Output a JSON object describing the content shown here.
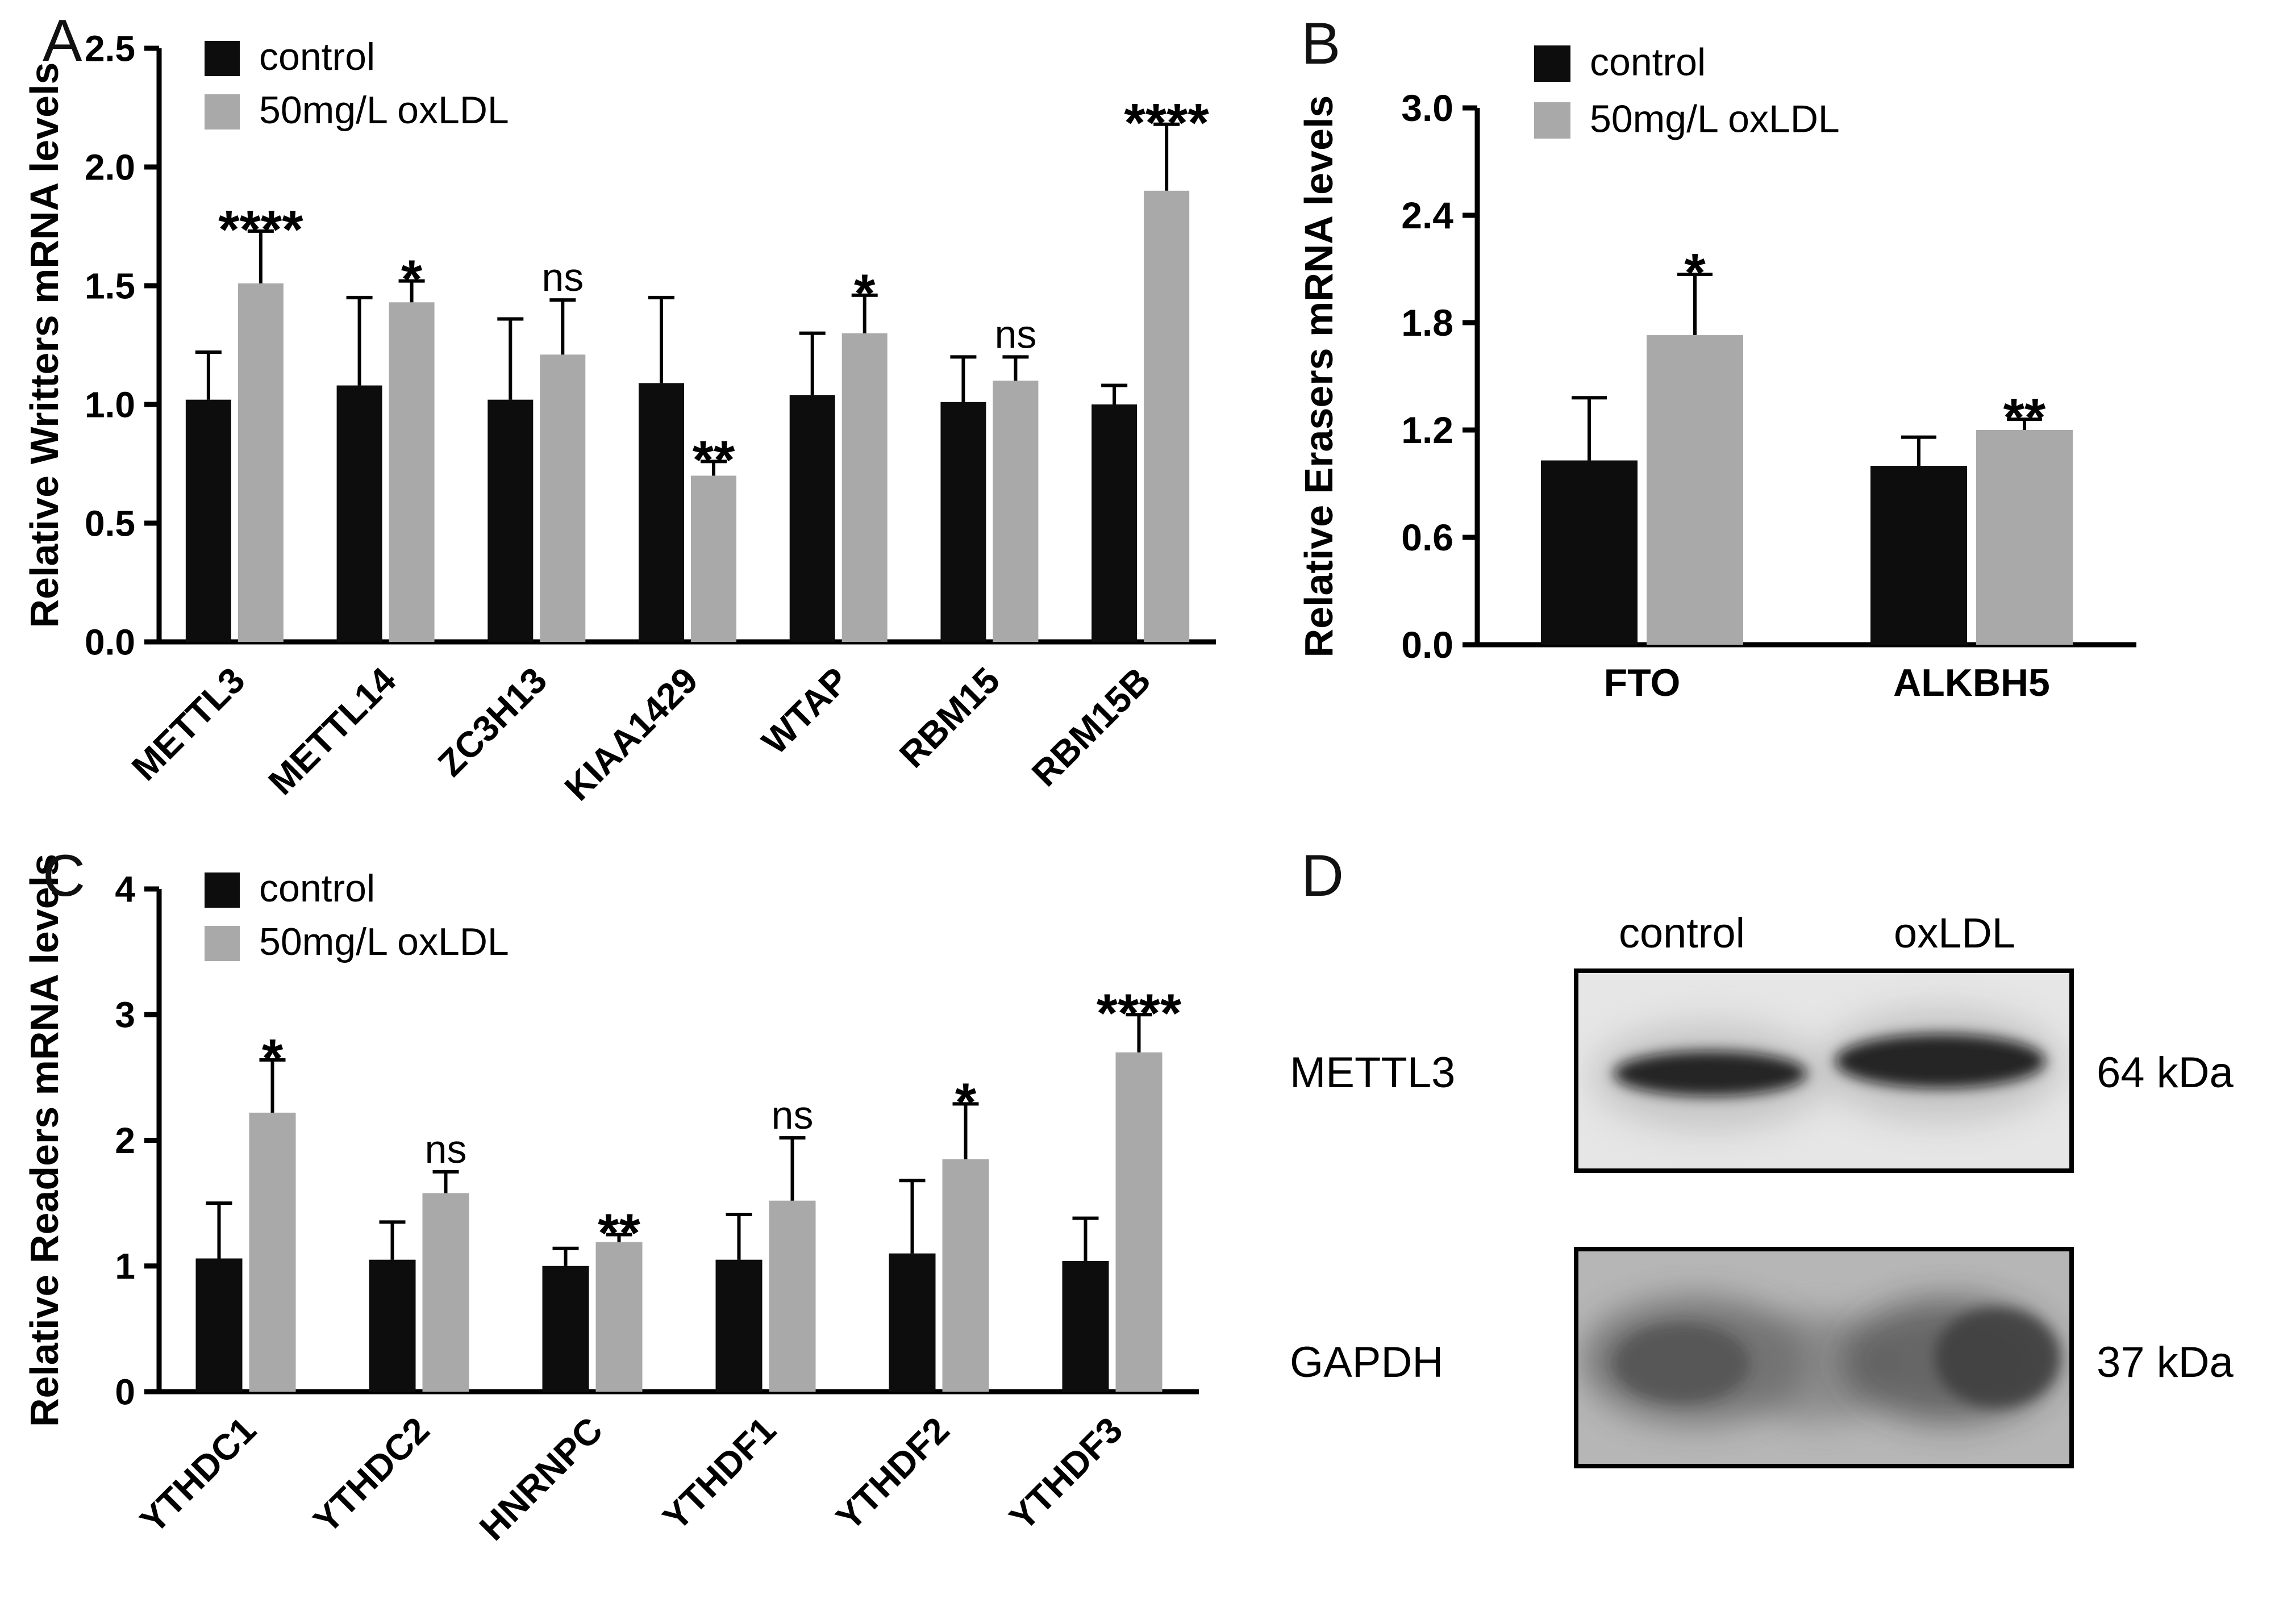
{
  "panels": {
    "a": {
      "letter": "A"
    },
    "b": {
      "letter": "B"
    },
    "c": {
      "letter": "C"
    },
    "d": {
      "letter": "D"
    }
  },
  "colors": {
    "control_bar": "#0d0d0d",
    "oxldl_bar": "#a9a9a9",
    "error_bar": "#000000"
  },
  "chart_data": [
    {
      "id": "writers",
      "panel": "A",
      "type": "bar",
      "title": "",
      "ylabel": "Relative Writters mRNA levels",
      "xlabel": "",
      "ylim": [
        0,
        2.5
      ],
      "yticks": [
        0.0,
        0.5,
        1.0,
        1.5,
        2.0,
        2.5
      ],
      "ytick_labels": [
        "0.0",
        "0.5",
        "1.0",
        "1.5",
        "2.0",
        "2.5"
      ],
      "categories": [
        "METTL3",
        "METTL14",
        "ZC3H13",
        "KIAA1429",
        "WTAP",
        "RBM15",
        "RBM15B"
      ],
      "series": [
        {
          "name": "control",
          "color": "#0d0d0d",
          "values": [
            1.02,
            1.08,
            1.02,
            1.09,
            1.04,
            1.01,
            1.0
          ],
          "errors": [
            0.2,
            0.37,
            0.34,
            0.36,
            0.26,
            0.19,
            0.08
          ]
        },
        {
          "name": "50mg/L oxLDL",
          "color": "#a9a9a9",
          "values": [
            1.51,
            1.43,
            1.21,
            0.7,
            1.3,
            1.1,
            1.9
          ],
          "errors": [
            0.22,
            0.09,
            0.23,
            0.06,
            0.16,
            0.1,
            0.28
          ]
        }
      ],
      "significance": [
        "****",
        "*",
        "ns",
        "**",
        "*",
        "ns",
        "****"
      ],
      "legend_position": "top-left",
      "grid": false
    },
    {
      "id": "erasers",
      "panel": "B",
      "type": "bar",
      "title": "",
      "ylabel": "Relative Erasers mRNA levels",
      "xlabel": "",
      "ylim": [
        0,
        3.0
      ],
      "yticks": [
        0.0,
        0.6,
        1.2,
        1.8,
        2.4,
        3.0
      ],
      "ytick_labels": [
        "0.0",
        "0.6",
        "1.2",
        "1.8",
        "2.4",
        "3.0"
      ],
      "categories": [
        "FTO",
        "ALKBH5"
      ],
      "series": [
        {
          "name": "control",
          "color": "#0d0d0d",
          "values": [
            1.03,
            1.0
          ],
          "errors": [
            0.35,
            0.16
          ]
        },
        {
          "name": "50mg/L oxLDL",
          "color": "#a9a9a9",
          "values": [
            1.73,
            1.2
          ],
          "errors": [
            0.34,
            0.06
          ]
        }
      ],
      "significance": [
        "*",
        "**"
      ],
      "legend_position": "top-left",
      "grid": false
    },
    {
      "id": "readers",
      "panel": "C",
      "type": "bar",
      "title": "",
      "ylabel": "Relative Readers mRNA levels",
      "xlabel": "",
      "ylim": [
        0,
        4
      ],
      "yticks": [
        0,
        1,
        2,
        3,
        4
      ],
      "ytick_labels": [
        "0",
        "1",
        "2",
        "3",
        "4"
      ],
      "categories": [
        "YTHDC1",
        "YTHDC2",
        "HNRNPC",
        "YTHDF1",
        "YTHDF2",
        "YTHDF3"
      ],
      "series": [
        {
          "name": "control",
          "color": "#0d0d0d",
          "values": [
            1.06,
            1.05,
            1.0,
            1.05,
            1.1,
            1.04
          ],
          "errors": [
            0.44,
            0.3,
            0.14,
            0.36,
            0.58,
            0.34
          ]
        },
        {
          "name": "50mg/L oxLDL",
          "color": "#a9a9a9",
          "values": [
            2.22,
            1.58,
            1.19,
            1.52,
            1.85,
            2.7
          ],
          "errors": [
            0.42,
            0.17,
            0.06,
            0.5,
            0.44,
            0.3
          ]
        }
      ],
      "significance": [
        "*",
        "ns",
        "**",
        "ns",
        "*",
        "****"
      ],
      "legend_position": "top-left",
      "grid": false
    }
  ],
  "panel_d": {
    "col_headers": [
      "control",
      "oxLDL"
    ],
    "rows": [
      {
        "protein": "METTL3",
        "weight": "64 kDa"
      },
      {
        "protein": "GAPDH",
        "weight": "37 kDa"
      }
    ]
  }
}
